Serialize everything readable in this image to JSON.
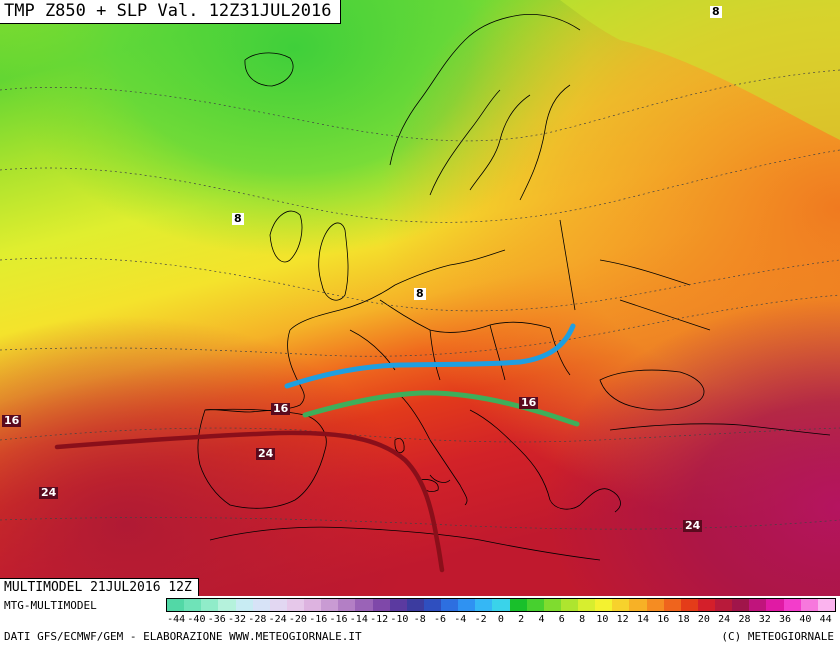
{
  "title": "TMP Z850 + SLP Val. 12Z31JUL2016",
  "model_run": "MULTIMODEL 21JUL2016 12Z",
  "footer": {
    "model_short": "MTG-MULTIMODEL",
    "source": "DATI GFS/ECMWF/GEM - ELABORAZIONE WWW.METEOGIORNALE.IT",
    "copyright": "(C) METEOGIORNALE"
  },
  "contour_labels": {
    "north_east": "8",
    "atlantic": "8",
    "france": "8",
    "west_16": "16",
    "iberia_16": "16",
    "balkans_16": "16",
    "spain_24": "24",
    "atlantic_24": "24",
    "med_24": "24"
  },
  "colorbar": {
    "ticks": [
      "-44",
      "-40",
      "-36",
      "-32",
      "-28",
      "-24",
      "-20",
      "-16",
      "-16",
      "-14",
      "-12",
      "-10",
      "-8",
      "-6",
      "-4",
      "-2",
      "0",
      "2",
      "4",
      "6",
      "8",
      "10",
      "12",
      "14",
      "16",
      "18",
      "20",
      "24",
      "28",
      "32",
      "36",
      "40",
      "44"
    ],
    "colors": [
      "#52d8a6",
      "#6fe3b8",
      "#90ecc9",
      "#b5f2dc",
      "#c8ecf3",
      "#d7e3f7",
      "#e2d7f2",
      "#e6c8ea",
      "#ddb3e0",
      "#c99bd3",
      "#b37fc5",
      "#9a63b7",
      "#7f48a9",
      "#5b3aa0",
      "#3c3c9f",
      "#2f4fbf",
      "#2d6fe0",
      "#2f92f2",
      "#35b7f5",
      "#3ad3ea",
      "#19c02b",
      "#47d02f",
      "#7fdc2f",
      "#aee52f",
      "#d7ee2f",
      "#f4f230",
      "#f7d22c",
      "#f7b126",
      "#f58c22",
      "#ef641d",
      "#e43c19",
      "#d41f2a",
      "#b81a3a",
      "#a0154a",
      "#c0147c",
      "#e01aa4",
      "#f33dcb",
      "#f778dd",
      "#fbb3ee"
    ],
    "colors_note": "visible gradient from teal/blue through green-yellow-orange-red-magenta"
  },
  "overlay_lines": {
    "blue": "#1f9fe0",
    "green": "#3fae5a",
    "dark_red": "#8a0f1a"
  }
}
